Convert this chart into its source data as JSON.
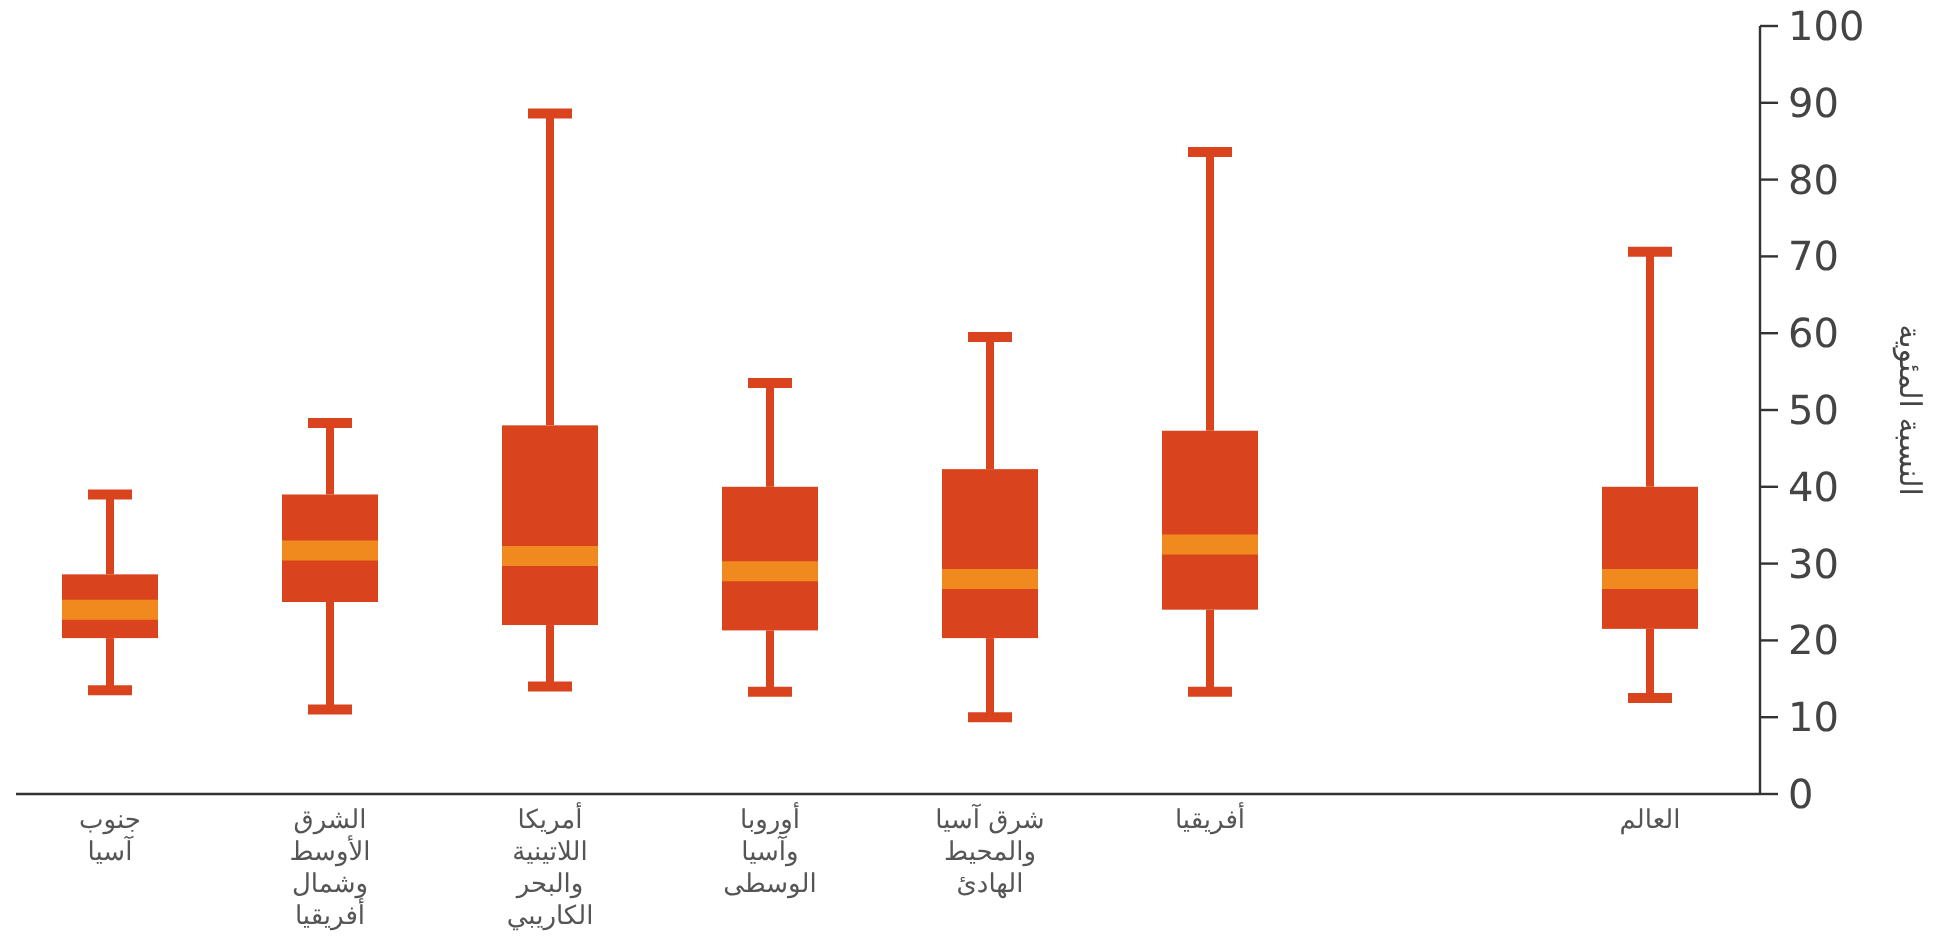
{
  "chart_data": {
    "type": "box",
    "ylabel": "النسبة المئوية",
    "categories": [
      "جنوب\nآسيا",
      "الشرق\nالأوسط\nوشمال\nأفريقيا",
      "أمريكا\nاللاتينية\nوالبحر\nالكاريبي",
      "أوروبا\nوآسيا\nالوسطى",
      "شرق آسيا\nوالمحيط\nالهادئ",
      "أفريقيا",
      null,
      "العالم"
    ],
    "boxes": [
      {
        "low": 13.5,
        "q1": 20.3,
        "median": 24,
        "q3": 28.6,
        "high": 39
      },
      {
        "low": 11,
        "q1": 25,
        "median": 31.7,
        "q3": 39,
        "high": 48.3
      },
      {
        "low": 14,
        "q1": 22,
        "median": 31,
        "q3": 48,
        "high": 88.6
      },
      {
        "low": 13.3,
        "q1": 21.3,
        "median": 29,
        "q3": 40,
        "high": 53.5
      },
      {
        "low": 10,
        "q1": 20.3,
        "median": 28,
        "q3": 42.3,
        "high": 59.5
      },
      {
        "low": 13.3,
        "q1": 24,
        "median": 32.5,
        "q3": 47.3,
        "high": 83.6
      },
      null,
      {
        "low": 12.5,
        "q1": 21.5,
        "median": 28,
        "q3": 40,
        "high": 70.6
      }
    ],
    "color": "#d9441e",
    "ylim": [
      0,
      100
    ],
    "yticks": [
      0,
      10,
      20,
      30,
      40,
      50,
      60,
      70,
      80,
      90,
      100
    ]
  }
}
